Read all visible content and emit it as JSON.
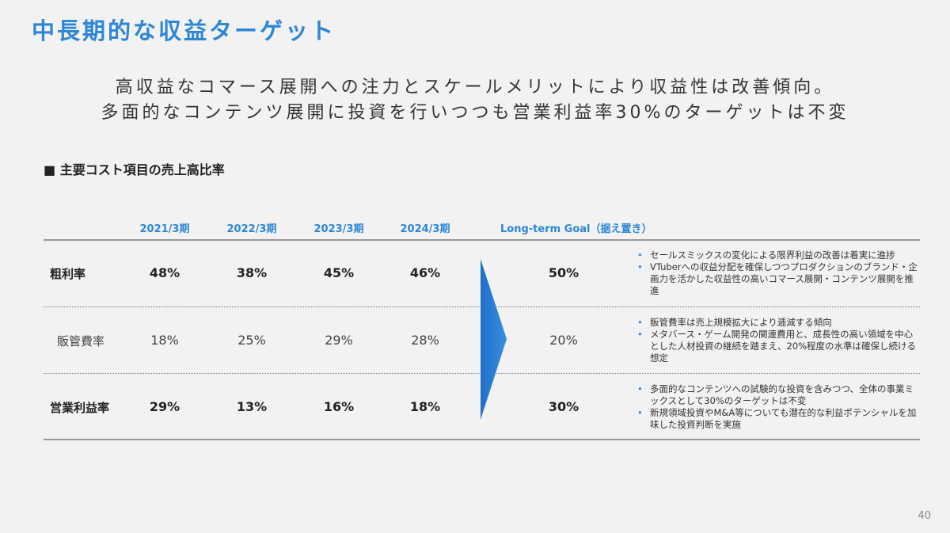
{
  "header": {
    "title": "中長期的な収益ターゲット",
    "subtitle": [
      "高収益なコマース展開への注力とスケールメリットにより収益性は改善傾向。",
      "多面的なコンテンツ展開に投資を行いつつも営業利益率30%のターゲットは不変"
    ]
  },
  "section": "■ 主要コスト項目の売上高比率",
  "table": {
    "columns": [
      "2021/3期",
      "2022/3期",
      "2023/3期",
      "2024/3期",
      "Long-term Goal（据え置き）"
    ],
    "rows": [
      {
        "label": "粗利率",
        "values": [
          "48%",
          "38%",
          "45%",
          "46%"
        ],
        "goal": "50%",
        "notes": [
          "セールスミックスの変化による限界利益の改善は着実に進捗",
          "VTuberへの収益分配を確保しつつプロダクションのブランド・企画力を活かした収益性の高いコマース展開・コンテンツ展開を推進"
        ]
      },
      {
        "label": "販管費率",
        "values": [
          "18%",
          "25%",
          "29%",
          "28%"
        ],
        "goal": "20%",
        "notes": [
          "販管費率は売上規模拡大により逓減する傾向",
          "メタバース・ゲーム開発の関連費用と、成長性の高い領域を中心とした人材投資の継続を踏まえ、20%程度の水準は確保し続ける想定"
        ]
      },
      {
        "label": "営業利益率",
        "values": [
          "29%",
          "13%",
          "16%",
          "18%"
        ],
        "goal": "30%",
        "notes": [
          "多面的なコンテンツへの試験的な投資を含みつつ、全体の事業ミックスとして30%のターゲットは不変",
          "新規領域投資やM&A等についても潜在的な利益ポテンシャルを加味した投資判断を実施"
        ]
      }
    ]
  },
  "page_number": "40"
}
